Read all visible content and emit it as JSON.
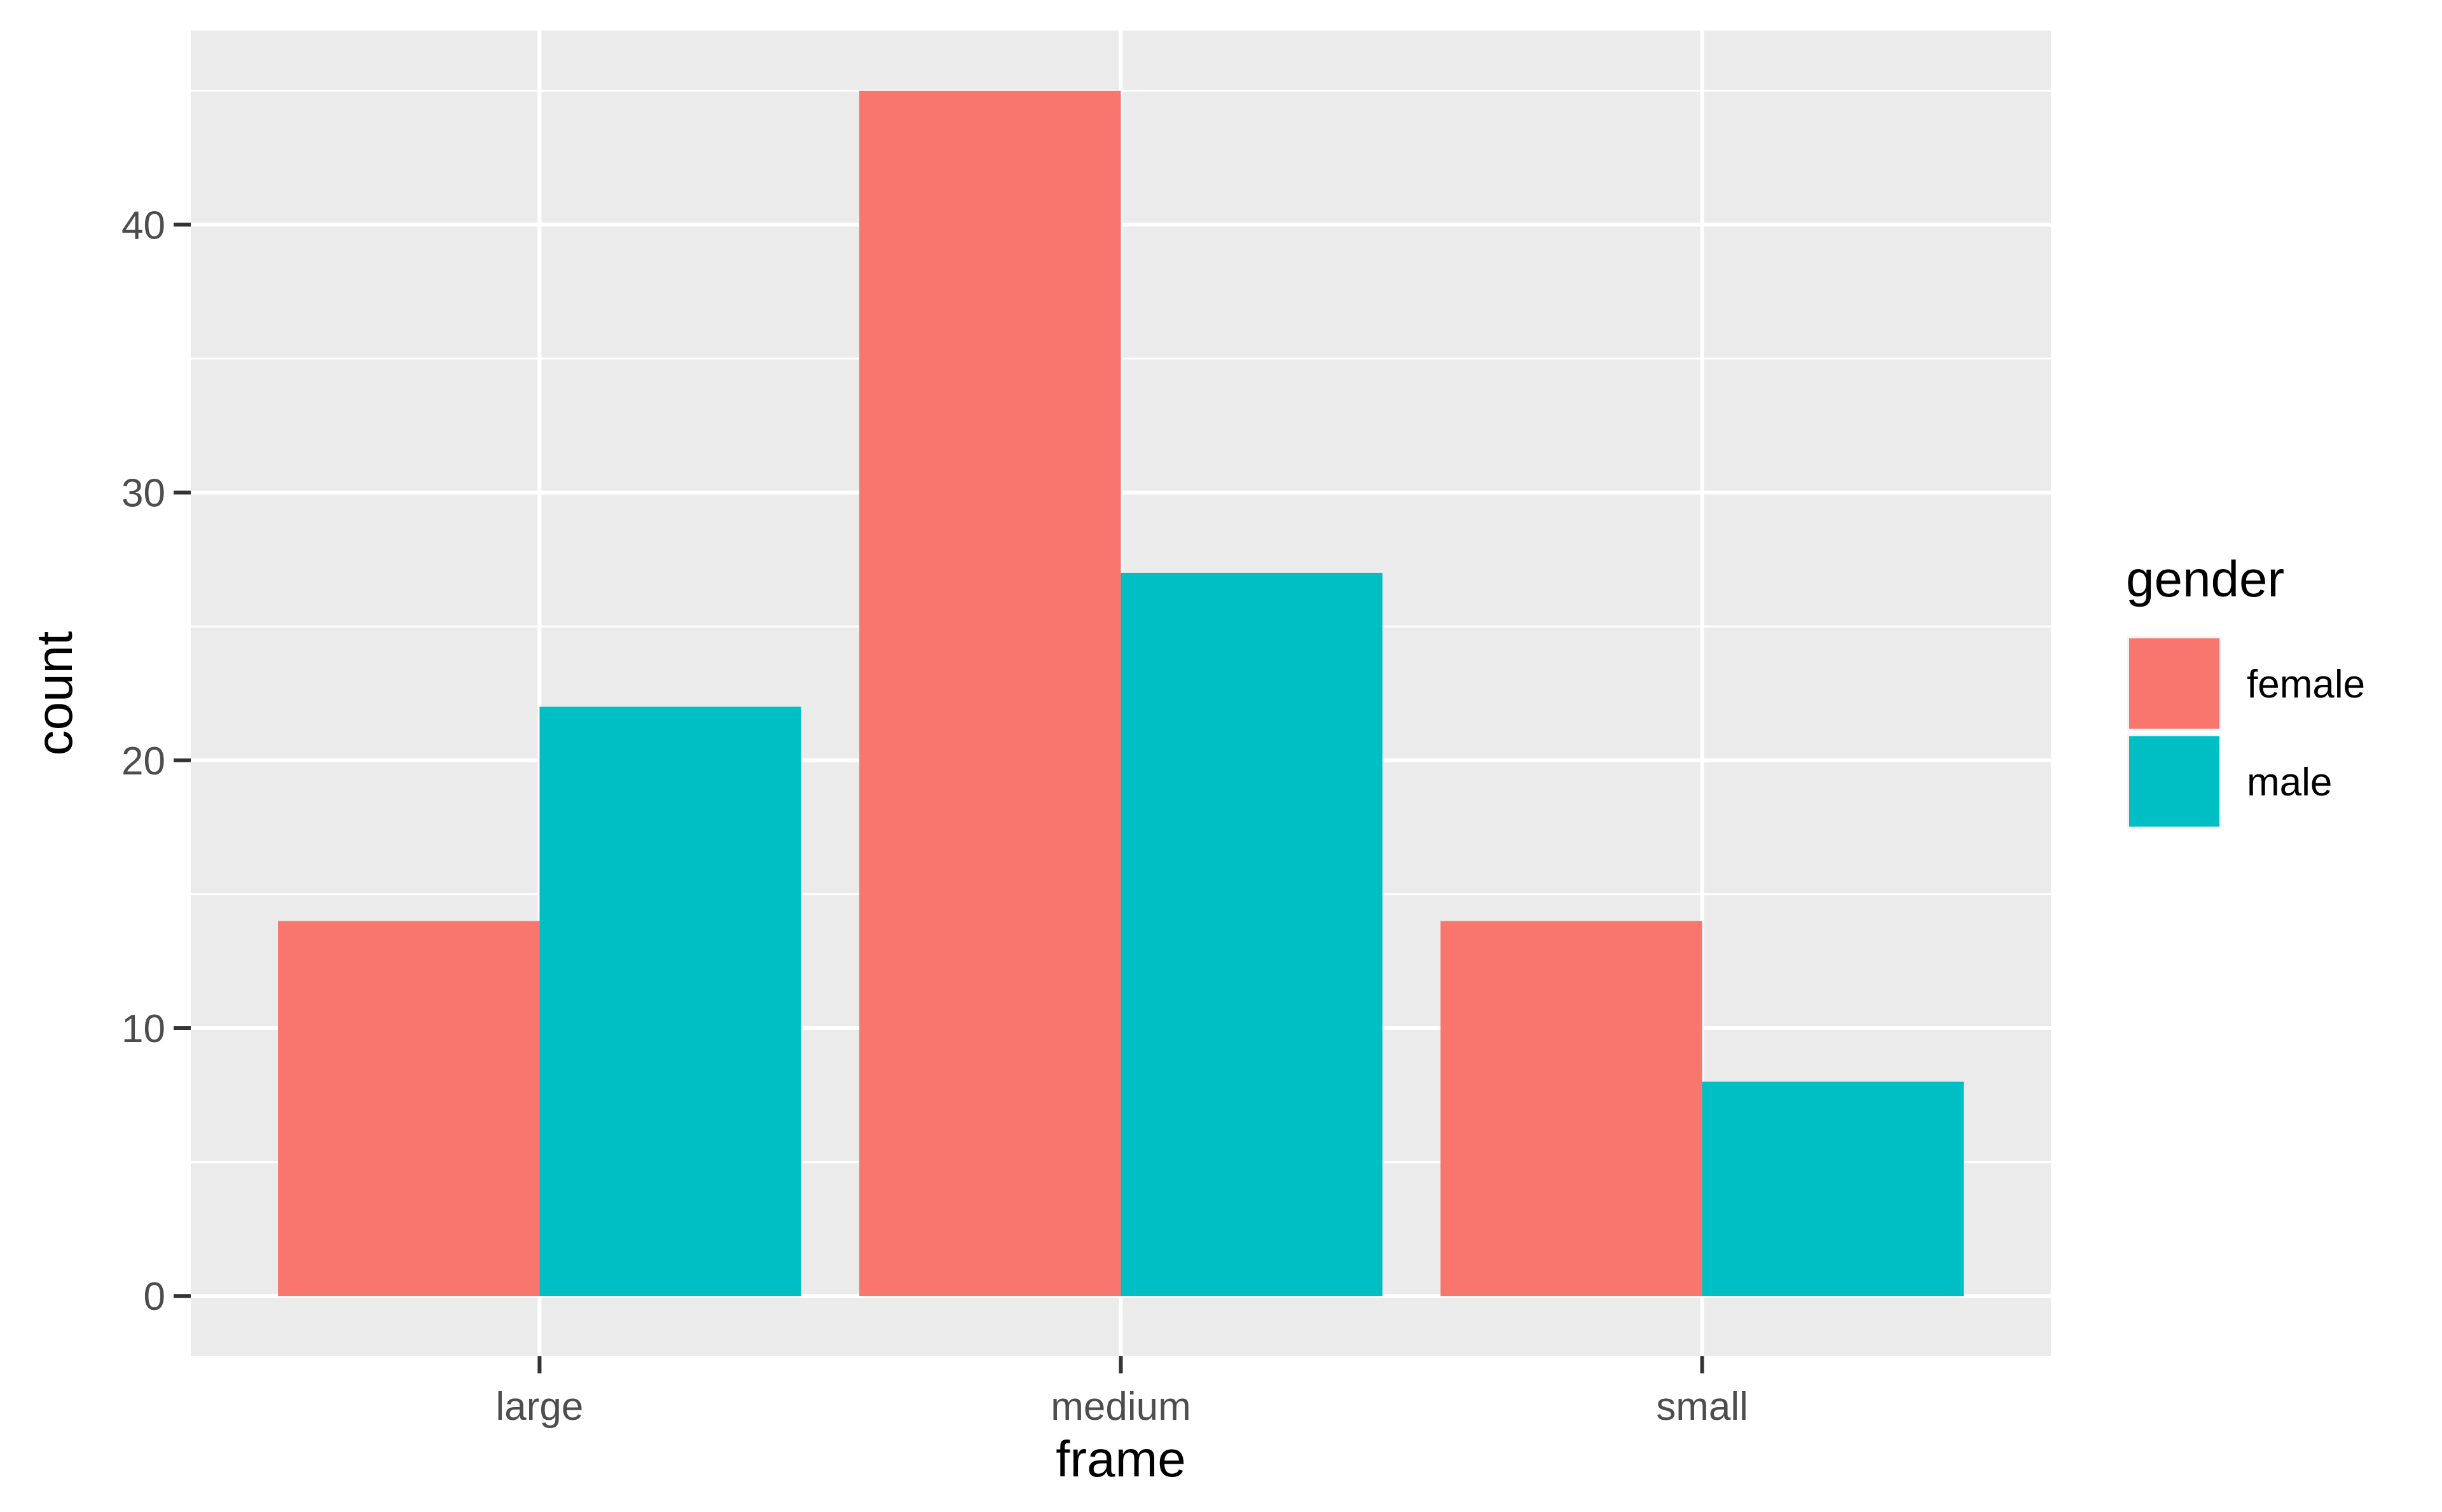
{
  "chart_data": {
    "type": "bar",
    "categories": [
      "large",
      "medium",
      "small"
    ],
    "series": [
      {
        "name": "female",
        "color": "#F8766D",
        "values": [
          14,
          45,
          14
        ]
      },
      {
        "name": "male",
        "color": "#00BFC4",
        "values": [
          22,
          27,
          8
        ]
      }
    ],
    "xlabel": "frame",
    "ylabel": "count",
    "ylim": [
      -2.25,
      47.25
    ],
    "yticks": [
      0,
      10,
      20,
      30,
      40
    ],
    "grid": true,
    "legend": {
      "title": "gender",
      "placement": "right"
    },
    "panel_color": "#EBEBEB",
    "grid_color": "#FFFFFF",
    "text_color": "#4D4D4D",
    "title_color": "#000000"
  }
}
